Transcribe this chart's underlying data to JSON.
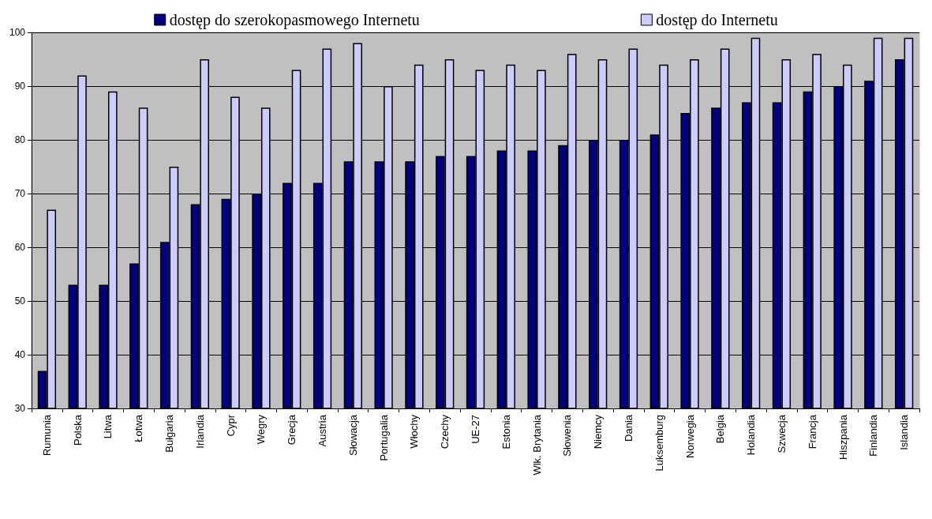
{
  "chart_data": {
    "type": "bar",
    "categories": [
      "Rumunia",
      "Polska",
      "Litwa",
      "Łotwa",
      "Bułgaria",
      "Irlandia",
      "Cypr",
      "Wegry",
      "Grecja",
      "Austria",
      "Słowacja",
      "Portugalia",
      "Włochy",
      "Czechy",
      "UE-27",
      "Estonia",
      "Wlk. Brytania",
      "Słowenia",
      "Niemcy",
      "Dania",
      "Luksemburg",
      "Norwegia",
      "Belgia",
      "Holandia",
      "Szwecja",
      "Francja",
      "Hiszpania",
      "Finlandia",
      "Islandia"
    ],
    "series": [
      {
        "name": "dostęp do szerokopasmowego Internetu",
        "color": "#000080",
        "values": [
          37,
          53,
          53,
          57,
          61,
          68,
          69,
          70,
          72,
          72,
          76,
          76,
          76,
          77,
          77,
          78,
          78,
          79,
          80,
          80,
          81,
          85,
          86,
          87,
          87,
          89,
          90,
          91,
          95
        ]
      },
      {
        "name": "dostęp do Internetu",
        "color": "#ccccff",
        "values": [
          67,
          92,
          89,
          86,
          75,
          95,
          88,
          86,
          93,
          97,
          98,
          90,
          94,
          95,
          93,
          94,
          93,
          96,
          95,
          97,
          94,
          95,
          97,
          99,
          95,
          96,
          94,
          99,
          99
        ]
      }
    ],
    "ylim": [
      30,
      100
    ],
    "yticks": [
      30,
      40,
      50,
      60,
      70,
      80,
      90,
      100
    ],
    "grid": "y",
    "legend": "top"
  }
}
